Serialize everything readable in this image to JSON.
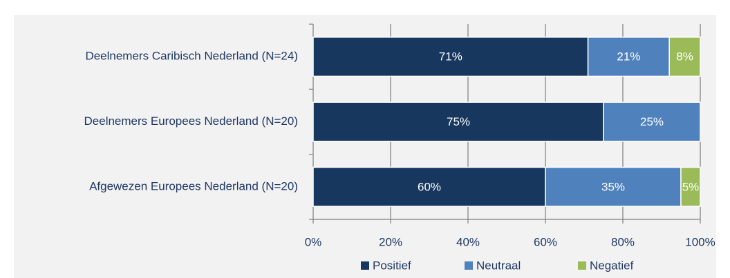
{
  "chart_data": {
    "type": "stacked-bar",
    "orientation": "horizontal",
    "categories": [
      "Deelnemers Caribisch Nederland (N=24)",
      "Deelnemers Europees Nederland (N=20)",
      "Afgewezen Europees Nederland (N=20)"
    ],
    "series": [
      {
        "name": "Positief",
        "color": "#17375e",
        "values": [
          71,
          75,
          60
        ],
        "value_labels": [
          "71%",
          "75%",
          "60%"
        ]
      },
      {
        "name": "Neutraal",
        "color": "#4f81bd",
        "values": [
          21,
          25,
          35
        ],
        "value_labels": [
          "21%",
          "25%",
          "35%"
        ]
      },
      {
        "name": "Negatief",
        "color": "#9bbb59",
        "values": [
          8,
          null,
          5
        ],
        "value_labels": [
          "8%",
          null,
          "5%"
        ]
      }
    ],
    "xlim": [
      0,
      100
    ],
    "xticks": [
      {
        "value": 0,
        "label": "0%"
      },
      {
        "value": 20,
        "label": "20%"
      },
      {
        "value": 40,
        "label": "40%"
      },
      {
        "value": 60,
        "label": "60%"
      },
      {
        "value": 80,
        "label": "80%"
      },
      {
        "value": 100,
        "label": "100%"
      }
    ],
    "grid": true,
    "legend": "bottom"
  }
}
